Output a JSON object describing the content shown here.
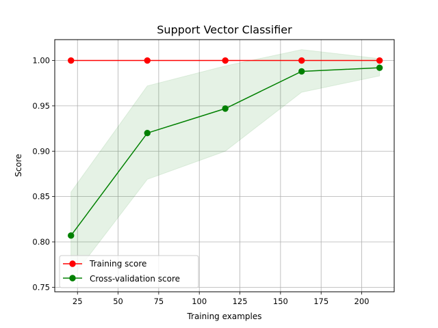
{
  "chart_data": {
    "type": "line",
    "title": "Support Vector Classifier",
    "xlabel": "Training examples",
    "ylabel": "Score",
    "xlim": [
      11,
      220
    ],
    "ylim": [
      0.745,
      1.023
    ],
    "xticks": [
      25,
      50,
      75,
      100,
      125,
      150,
      175,
      200
    ],
    "yticks": [
      0.75,
      0.8,
      0.85,
      0.9,
      0.95,
      1.0
    ],
    "xtick_labels": [
      "25",
      "50",
      "75",
      "100",
      "125",
      "150",
      "175",
      "200"
    ],
    "ytick_labels": [
      "0.75",
      "0.80",
      "0.85",
      "0.90",
      "0.95",
      "1.00"
    ],
    "grid": true,
    "legend_position": "lower-left",
    "x": [
      21,
      68,
      116,
      163,
      211
    ],
    "series": [
      {
        "name": "Training score",
        "values": [
          1.0,
          1.0,
          1.0,
          1.0,
          1.0
        ],
        "color": "#ff0000",
        "band": null
      },
      {
        "name": "Cross-validation score",
        "values": [
          0.807,
          0.92,
          0.947,
          0.988,
          0.992
        ],
        "color": "#008000",
        "band": {
          "lower": [
            0.759,
            0.869,
            0.9,
            0.965,
            0.983
          ],
          "upper": [
            0.855,
            0.972,
            0.994,
            1.012,
            1.002
          ],
          "color": "#008000",
          "opacity": 0.1
        }
      }
    ]
  }
}
